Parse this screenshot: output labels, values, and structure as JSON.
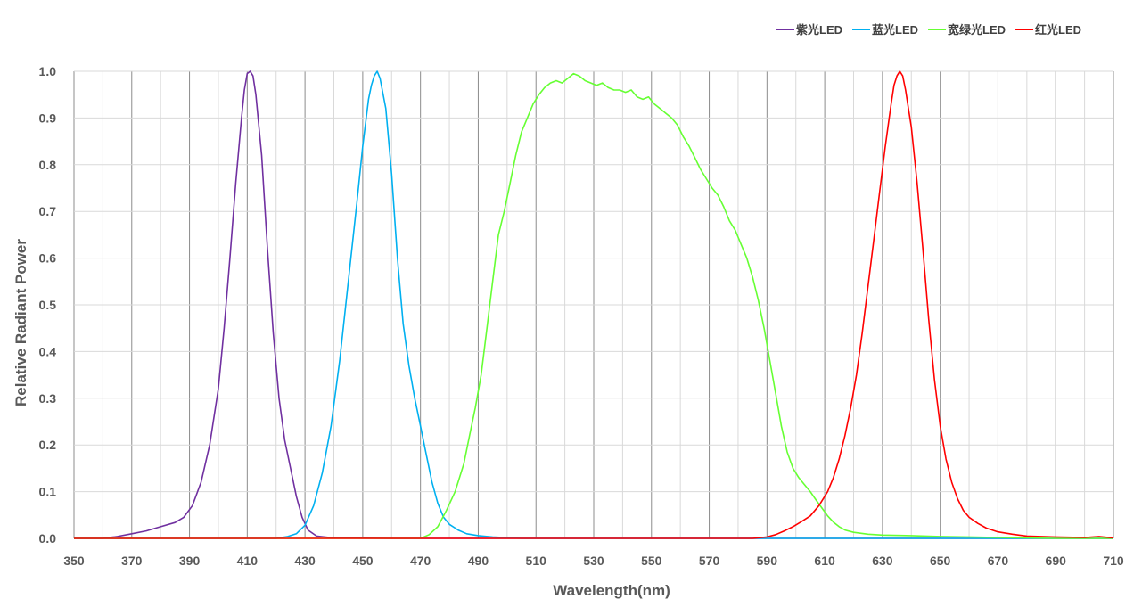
{
  "chart_data": {
    "type": "line",
    "title": "",
    "xlabel": "Wavelength(nm)",
    "ylabel": "Relative Radiant Power",
    "xlim": [
      350,
      710
    ],
    "ylim": [
      0,
      1.0
    ],
    "x_ticks": [
      "350",
      "370",
      "390",
      "410",
      "430",
      "450",
      "470",
      "490",
      "510",
      "530",
      "550",
      "570",
      "590",
      "610",
      "630",
      "650",
      "670",
      "690",
      "710"
    ],
    "y_ticks": [
      "0.0",
      "0.1",
      "0.2",
      "0.3",
      "0.4",
      "0.5",
      "0.6",
      "0.7",
      "0.8",
      "0.9",
      "1.0"
    ],
    "grid": "on",
    "legend_position": "top-right",
    "series": [
      {
        "name": "紫光LED",
        "color": "#7030a0",
        "points": [
          [
            350,
            0
          ],
          [
            360,
            0
          ],
          [
            365,
            0.004
          ],
          [
            370,
            0.01
          ],
          [
            375,
            0.016
          ],
          [
            380,
            0.025
          ],
          [
            385,
            0.034
          ],
          [
            388,
            0.045
          ],
          [
            391,
            0.07
          ],
          [
            394,
            0.12
          ],
          [
            397,
            0.2
          ],
          [
            400,
            0.32
          ],
          [
            402,
            0.45
          ],
          [
            404,
            0.6
          ],
          [
            406,
            0.76
          ],
          [
            408,
            0.9
          ],
          [
            409,
            0.96
          ],
          [
            410,
            0.995
          ],
          [
            411,
            1.0
          ],
          [
            412,
            0.99
          ],
          [
            413,
            0.95
          ],
          [
            415,
            0.82
          ],
          [
            417,
            0.62
          ],
          [
            419,
            0.44
          ],
          [
            421,
            0.3
          ],
          [
            423,
            0.21
          ],
          [
            425,
            0.15
          ],
          [
            427,
            0.09
          ],
          [
            429,
            0.045
          ],
          [
            431,
            0.018
          ],
          [
            434,
            0.005
          ],
          [
            440,
            0.001
          ],
          [
            460,
            0
          ],
          [
            710,
            0
          ]
        ]
      },
      {
        "name": "蓝光LED",
        "color": "#00b0f0",
        "points": [
          [
            350,
            0
          ],
          [
            420,
            0
          ],
          [
            424,
            0.004
          ],
          [
            427,
            0.01
          ],
          [
            430,
            0.028
          ],
          [
            433,
            0.07
          ],
          [
            436,
            0.14
          ],
          [
            439,
            0.24
          ],
          [
            442,
            0.38
          ],
          [
            445,
            0.55
          ],
          [
            448,
            0.72
          ],
          [
            450,
            0.84
          ],
          [
            452,
            0.94
          ],
          [
            453,
            0.97
          ],
          [
            454,
            0.99
          ],
          [
            455,
            1.0
          ],
          [
            456,
            0.985
          ],
          [
            458,
            0.92
          ],
          [
            460,
            0.78
          ],
          [
            462,
            0.6
          ],
          [
            464,
            0.46
          ],
          [
            466,
            0.37
          ],
          [
            468,
            0.3
          ],
          [
            470,
            0.24
          ],
          [
            472,
            0.18
          ],
          [
            474,
            0.12
          ],
          [
            476,
            0.075
          ],
          [
            478,
            0.045
          ],
          [
            480,
            0.03
          ],
          [
            483,
            0.018
          ],
          [
            486,
            0.01
          ],
          [
            490,
            0.006
          ],
          [
            495,
            0.003
          ],
          [
            505,
            0
          ],
          [
            710,
            0
          ]
        ]
      },
      {
        "name": "宽绿光LED",
        "color": "#66ff33",
        "points": [
          [
            350,
            0
          ],
          [
            470,
            0
          ],
          [
            473,
            0.008
          ],
          [
            476,
            0.025
          ],
          [
            479,
            0.06
          ],
          [
            482,
            0.1
          ],
          [
            485,
            0.16
          ],
          [
            487,
            0.22
          ],
          [
            489,
            0.28
          ],
          [
            491,
            0.35
          ],
          [
            493,
            0.45
          ],
          [
            495,
            0.55
          ],
          [
            497,
            0.65
          ],
          [
            499,
            0.7
          ],
          [
            501,
            0.76
          ],
          [
            503,
            0.82
          ],
          [
            505,
            0.87
          ],
          [
            507,
            0.9
          ],
          [
            509,
            0.93
          ],
          [
            511,
            0.95
          ],
          [
            513,
            0.965
          ],
          [
            515,
            0.975
          ],
          [
            517,
            0.98
          ],
          [
            519,
            0.975
          ],
          [
            521,
            0.985
          ],
          [
            523,
            0.995
          ],
          [
            525,
            0.99
          ],
          [
            527,
            0.98
          ],
          [
            529,
            0.975
          ],
          [
            531,
            0.97
          ],
          [
            533,
            0.975
          ],
          [
            535,
            0.965
          ],
          [
            537,
            0.96
          ],
          [
            539,
            0.96
          ],
          [
            541,
            0.955
          ],
          [
            543,
            0.96
          ],
          [
            545,
            0.945
          ],
          [
            547,
            0.94
          ],
          [
            549,
            0.945
          ],
          [
            551,
            0.93
          ],
          [
            553,
            0.92
          ],
          [
            555,
            0.91
          ],
          [
            557,
            0.9
          ],
          [
            559,
            0.885
          ],
          [
            561,
            0.86
          ],
          [
            563,
            0.84
          ],
          [
            565,
            0.815
          ],
          [
            567,
            0.79
          ],
          [
            569,
            0.77
          ],
          [
            571,
            0.75
          ],
          [
            573,
            0.735
          ],
          [
            575,
            0.71
          ],
          [
            577,
            0.68
          ],
          [
            579,
            0.66
          ],
          [
            581,
            0.63
          ],
          [
            583,
            0.6
          ],
          [
            585,
            0.56
          ],
          [
            587,
            0.51
          ],
          [
            589,
            0.45
          ],
          [
            591,
            0.38
          ],
          [
            593,
            0.31
          ],
          [
            595,
            0.24
          ],
          [
            597,
            0.185
          ],
          [
            599,
            0.15
          ],
          [
            601,
            0.13
          ],
          [
            603,
            0.115
          ],
          [
            605,
            0.1
          ],
          [
            607,
            0.082
          ],
          [
            609,
            0.065
          ],
          [
            611,
            0.048
          ],
          [
            613,
            0.035
          ],
          [
            615,
            0.025
          ],
          [
            617,
            0.018
          ],
          [
            620,
            0.013
          ],
          [
            625,
            0.009
          ],
          [
            630,
            0.007
          ],
          [
            640,
            0.006
          ],
          [
            650,
            0.004
          ],
          [
            660,
            0.003
          ],
          [
            670,
            0.002
          ],
          [
            680,
            0.001
          ],
          [
            690,
            0
          ],
          [
            710,
            0
          ]
        ]
      },
      {
        "name": "红光LED",
        "color": "#ff0000",
        "points": [
          [
            350,
            0
          ],
          [
            585,
            0
          ],
          [
            590,
            0.003
          ],
          [
            593,
            0.008
          ],
          [
            596,
            0.016
          ],
          [
            599,
            0.025
          ],
          [
            602,
            0.036
          ],
          [
            605,
            0.048
          ],
          [
            608,
            0.07
          ],
          [
            611,
            0.1
          ],
          [
            613,
            0.13
          ],
          [
            615,
            0.17
          ],
          [
            617,
            0.22
          ],
          [
            619,
            0.28
          ],
          [
            621,
            0.35
          ],
          [
            623,
            0.44
          ],
          [
            625,
            0.54
          ],
          [
            627,
            0.64
          ],
          [
            629,
            0.74
          ],
          [
            631,
            0.84
          ],
          [
            633,
            0.93
          ],
          [
            634,
            0.97
          ],
          [
            635,
            0.99
          ],
          [
            636,
            1.0
          ],
          [
            637,
            0.99
          ],
          [
            638,
            0.96
          ],
          [
            640,
            0.88
          ],
          [
            642,
            0.76
          ],
          [
            644,
            0.62
          ],
          [
            646,
            0.47
          ],
          [
            648,
            0.34
          ],
          [
            650,
            0.24
          ],
          [
            652,
            0.17
          ],
          [
            654,
            0.12
          ],
          [
            656,
            0.085
          ],
          [
            658,
            0.06
          ],
          [
            660,
            0.045
          ],
          [
            663,
            0.032
          ],
          [
            666,
            0.022
          ],
          [
            670,
            0.014
          ],
          [
            675,
            0.009
          ],
          [
            680,
            0.005
          ],
          [
            690,
            0.003
          ],
          [
            700,
            0.002
          ],
          [
            705,
            0.004
          ],
          [
            710,
            0.001
          ]
        ]
      }
    ]
  }
}
